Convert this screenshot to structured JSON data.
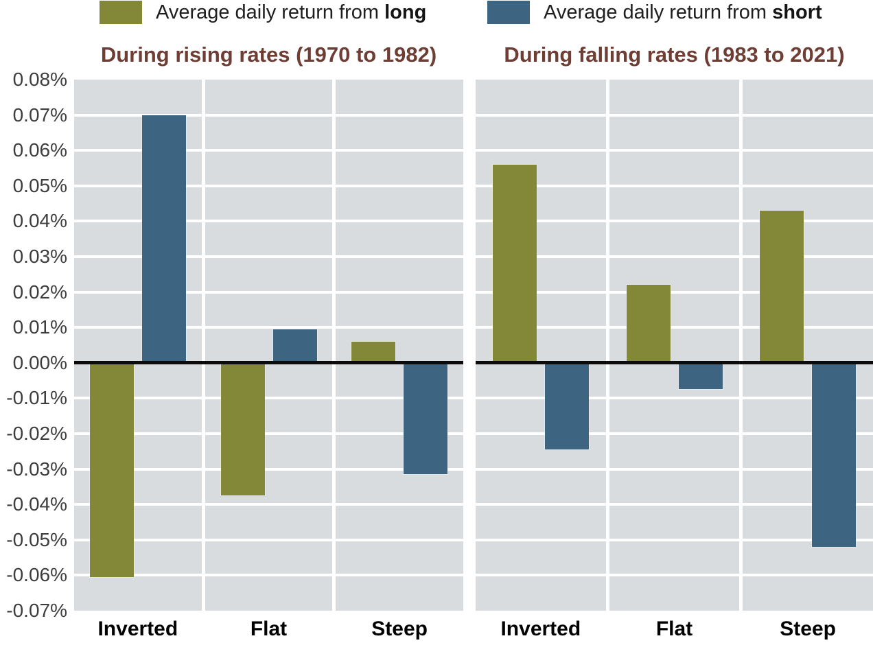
{
  "legend": {
    "items": [
      {
        "prefix": "Average daily return from ",
        "keyword": "long",
        "color": "#838738"
      },
      {
        "prefix": "Average daily return from ",
        "keyword": "short",
        "color": "#3d6480"
      }
    ]
  },
  "chart_data": {
    "type": "bar",
    "layout": "two-panel grouped bar chart, shared y axis on left, legend top, white gridlines on gray panel background, black zero line",
    "categories": [
      "Inverted",
      "Flat",
      "Steep"
    ],
    "y_axis": {
      "min": -0.07,
      "max": 0.08,
      "step": 0.01,
      "tick_labels": [
        "0.08%",
        "0.07%",
        "0.06%",
        "0.05%",
        "0.04%",
        "0.03%",
        "0.02%",
        "0.01%",
        "0.00%",
        "-0.01%",
        "-0.02%",
        "-0.03%",
        "-0.04%",
        "-0.05%",
        "-0.06%",
        "-0.07%"
      ]
    },
    "panels": [
      {
        "title": "During rising rates (1970 to 1982)",
        "series": [
          {
            "name": "long",
            "label": "Average daily return from long",
            "values": [
              -0.0605,
              -0.0375,
              0.006
            ]
          },
          {
            "name": "short",
            "label": "Average daily return from short",
            "values": [
              0.07,
              0.0095,
              -0.0315
            ]
          }
        ]
      },
      {
        "title": "During falling rates (1983 to 2021)",
        "series": [
          {
            "name": "long",
            "label": "Average daily return from long",
            "values": [
              0.056,
              0.022,
              0.043
            ]
          },
          {
            "name": "short",
            "label": "Average daily return from short",
            "values": [
              -0.0245,
              -0.0075,
              -0.052
            ]
          }
        ]
      }
    ],
    "colors": {
      "long": "#838738",
      "short": "#3d6480",
      "plot_bg": "#d9dcde",
      "gridline": "#ffffff",
      "zero_line": "#0b0b0b",
      "title": "#6e3e35",
      "axis_text": "#3d3d3d"
    },
    "grid": true,
    "legend_position": "top"
  }
}
